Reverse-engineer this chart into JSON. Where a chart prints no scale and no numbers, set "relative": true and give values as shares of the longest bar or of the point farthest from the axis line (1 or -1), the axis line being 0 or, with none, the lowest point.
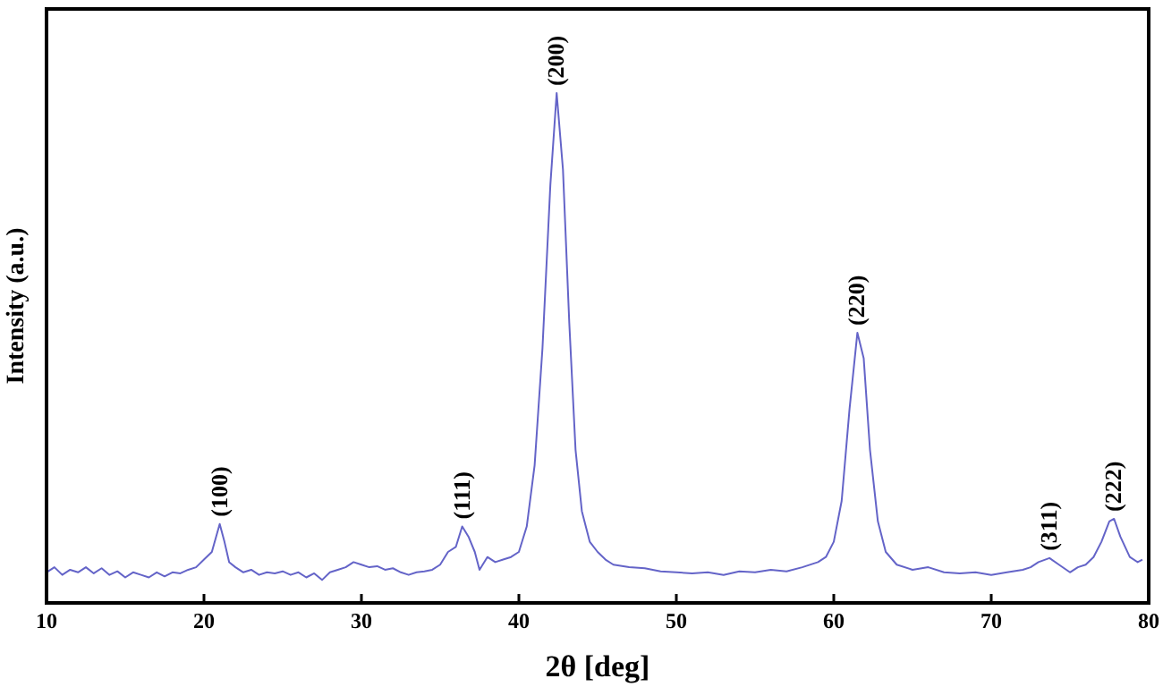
{
  "chart_data": {
    "type": "line",
    "relative": true,
    "xlabel": "2θ [deg]",
    "ylabel": "Intensity (a.u.)",
    "xlim": [
      10,
      80
    ],
    "xticks": [
      10,
      20,
      30,
      40,
      50,
      60,
      70,
      80
    ],
    "grid": false,
    "marker": "none",
    "line_style": "solid",
    "series": [
      {
        "color": "#6464c8",
        "x": [
          10,
          10.5,
          11,
          11.5,
          12,
          12.5,
          13,
          13.5,
          14,
          14.5,
          15,
          15.5,
          16,
          16.5,
          17,
          17.5,
          18,
          18.5,
          19,
          19.5,
          20,
          20.5,
          21,
          21.3,
          21.6,
          22,
          22.5,
          23,
          23.5,
          24,
          24.5,
          25,
          25.5,
          26,
          26.5,
          27,
          27.5,
          28,
          28.5,
          29,
          29.5,
          30,
          30.5,
          31,
          31.5,
          32,
          32.5,
          33,
          33.5,
          34,
          34.5,
          35,
          35.5,
          36,
          36.4,
          36.8,
          37.2,
          37.5,
          38,
          38.5,
          39,
          39.5,
          40,
          40.5,
          41,
          41.5,
          42,
          42.4,
          42.8,
          43.2,
          43.6,
          44,
          44.5,
          45,
          45.5,
          46,
          47,
          48,
          49,
          50,
          51,
          52,
          53,
          54,
          55,
          56,
          57,
          58,
          59,
          59.5,
          60,
          60.5,
          61,
          61.5,
          61.9,
          62.3,
          62.8,
          63.3,
          64,
          65,
          66,
          67,
          68,
          69,
          70,
          71,
          72,
          72.5,
          73,
          73.7,
          74.3,
          75,
          75.5,
          76,
          76.5,
          77,
          77.5,
          77.8,
          78.2,
          78.8,
          79.3,
          79.6
        ],
        "values": [
          0.06,
          0.07,
          0.055,
          0.065,
          0.06,
          0.07,
          0.058,
          0.068,
          0.055,
          0.062,
          0.05,
          0.06,
          0.055,
          0.05,
          0.06,
          0.052,
          0.06,
          0.058,
          0.065,
          0.07,
          0.085,
          0.1,
          0.155,
          0.12,
          0.08,
          0.07,
          0.06,
          0.065,
          0.055,
          0.06,
          0.058,
          0.062,
          0.055,
          0.06,
          0.05,
          0.058,
          0.045,
          0.06,
          0.065,
          0.07,
          0.08,
          0.075,
          0.07,
          0.072,
          0.065,
          0.068,
          0.06,
          0.055,
          0.06,
          0.062,
          0.065,
          0.075,
          0.1,
          0.11,
          0.15,
          0.13,
          0.1,
          0.065,
          0.09,
          0.08,
          0.085,
          0.09,
          0.1,
          0.15,
          0.27,
          0.5,
          0.82,
          1,
          0.85,
          0.55,
          0.3,
          0.18,
          0.12,
          0.1,
          0.085,
          0.075,
          0.07,
          0.068,
          0.062,
          0.06,
          0.058,
          0.06,
          0.055,
          0.062,
          0.06,
          0.065,
          0.062,
          0.07,
          0.08,
          0.09,
          0.12,
          0.2,
          0.38,
          0.53,
          0.48,
          0.3,
          0.16,
          0.1,
          0.075,
          0.065,
          0.07,
          0.06,
          0.058,
          0.06,
          0.055,
          0.06,
          0.065,
          0.07,
          0.08,
          0.088,
          0.075,
          0.06,
          0.07,
          0.075,
          0.09,
          0.12,
          0.16,
          0.165,
          0.13,
          0.09,
          0.08,
          0.085
        ]
      }
    ],
    "annotations": [
      {
        "text": "(100)",
        "x": 21,
        "y": 0.155
      },
      {
        "text": "(111)",
        "x": 36.4,
        "y": 0.15
      },
      {
        "text": "(200)",
        "x": 42.4,
        "y": 1
      },
      {
        "text": "(220)",
        "x": 61.5,
        "y": 0.53
      },
      {
        "text": "(311)",
        "x": 73.7,
        "y": 0.088
      },
      {
        "text": "(222)",
        "x": 77.8,
        "y": 0.165
      }
    ]
  }
}
